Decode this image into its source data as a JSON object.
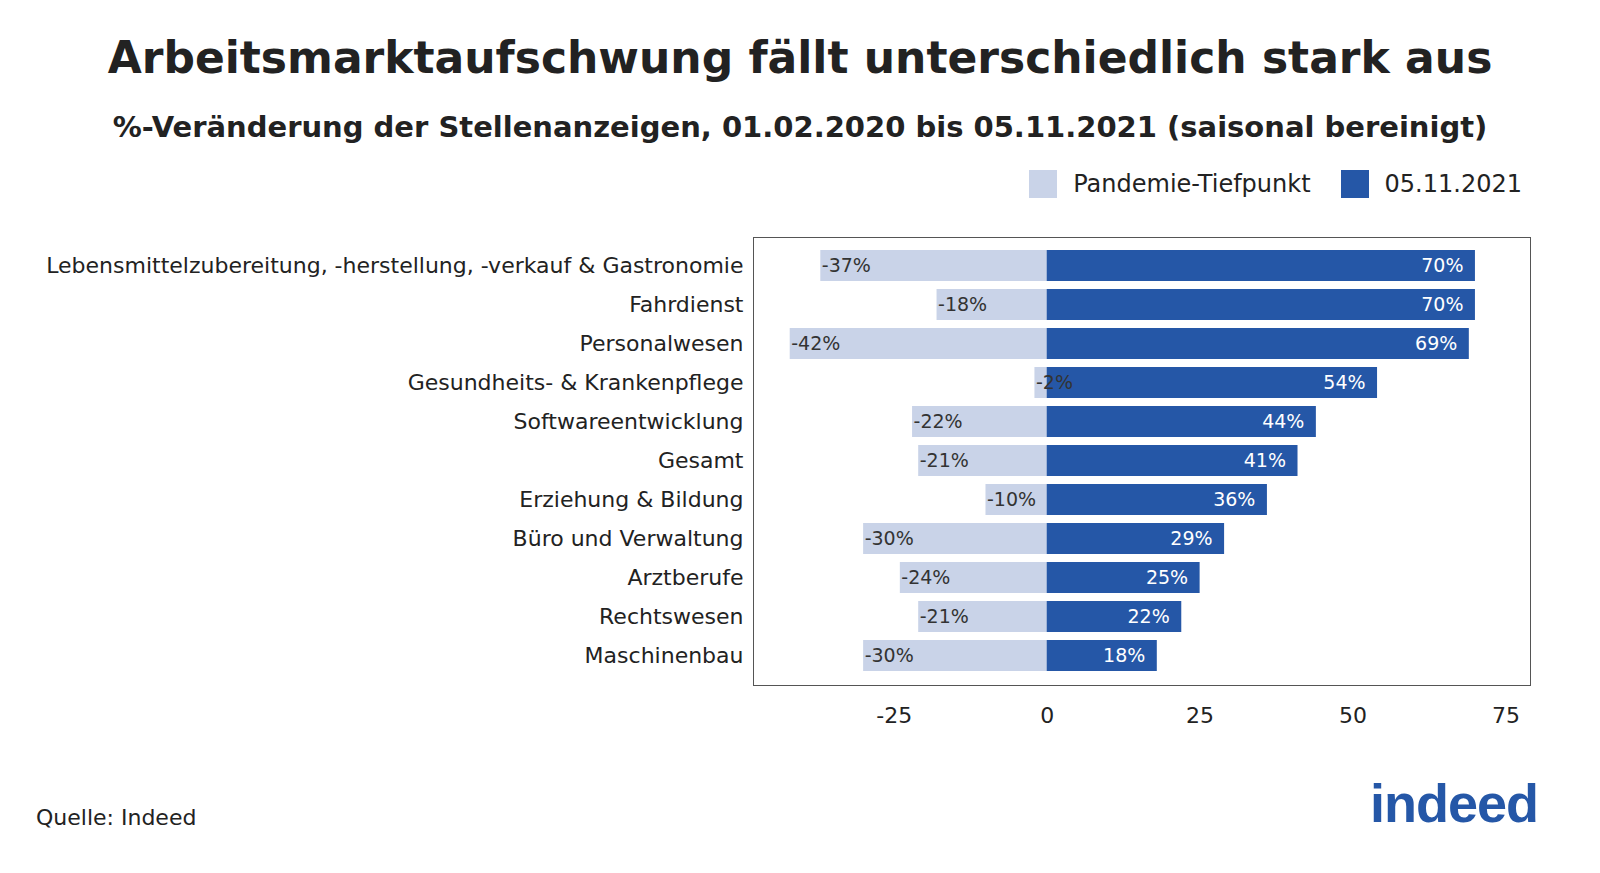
{
  "chart_data": {
    "type": "bar",
    "orientation": "horizontal",
    "title": "Arbeitsmarktaufschwung fällt unterschiedlich stark aus",
    "subtitle": "%-Veränderung der Stellenanzeigen, 01.02.2020 bis 05.11.2021 (saisonal bereinigt)",
    "source": "Quelle: Indeed",
    "logo": "indeed",
    "categories": [
      "Lebensmittelzubereitung, -herstellung, -verkauf & Gastronomie",
      "Fahrdienst",
      "Personalwesen",
      "Gesundheits- & Krankenpflege",
      "Softwareentwicklung",
      "Gesamt",
      "Erziehung & Bildung",
      "Büro und Verwaltung",
      "Arztberufe",
      "Rechtswesen",
      "Maschinenbau"
    ],
    "series": [
      {
        "name": "Pandemie-Tiefpunkt",
        "color": "#c9d3e8",
        "values": [
          -37,
          -18,
          -42,
          -2,
          -22,
          -21,
          -10,
          -30,
          -24,
          -21,
          -30
        ],
        "value_labels": [
          "-37%",
          "-18%",
          "-42%",
          "-2%",
          "-22%",
          "-21%",
          "-10%",
          "-30%",
          "-24%",
          "-21%",
          "-30%"
        ]
      },
      {
        "name": "05.11.2021",
        "color": "#2557a7",
        "values": [
          70,
          70,
          69,
          54,
          44,
          41,
          36,
          29,
          25,
          22,
          18
        ],
        "value_labels": [
          "70%",
          "70%",
          "69%",
          "54%",
          "44%",
          "41%",
          "36%",
          "29%",
          "25%",
          "22%",
          "18%"
        ]
      }
    ],
    "xlim": [
      -48,
      79
    ],
    "xticks": [
      -25,
      0,
      25,
      50,
      75
    ],
    "data_labels": true,
    "legend": "top-right",
    "grid": false
  }
}
